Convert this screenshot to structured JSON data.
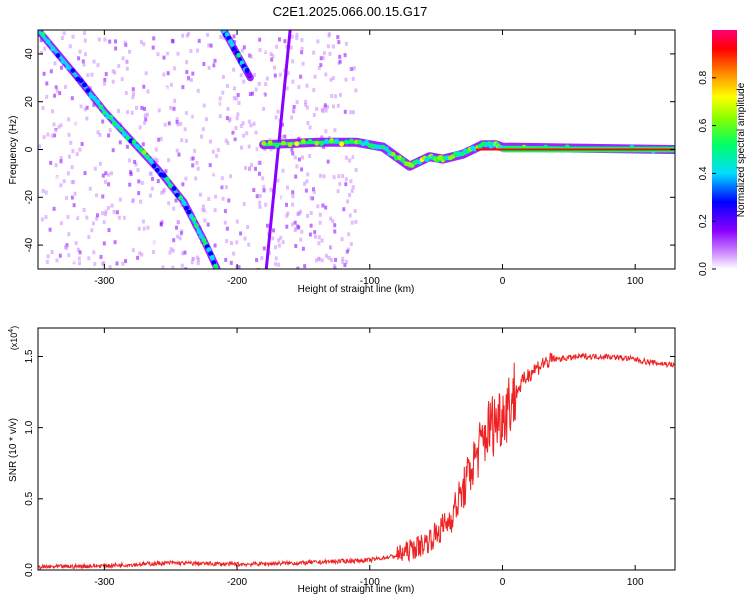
{
  "title": "C2E1.2025.066.00.15.G17",
  "colors": {
    "snr_line": "#ee2222",
    "colorscale": [
      "#ffffff",
      "#cc88ff",
      "#8a00ff",
      "#0000ff",
      "#00ddff",
      "#00ff66",
      "#88ff00",
      "#ffff00",
      "#ff8800",
      "#ff0000",
      "#ff0077"
    ]
  },
  "chart_data": [
    {
      "type": "heatmap",
      "xlabel": "Height of straight line (km)",
      "ylabel": "Frequency (Hz)",
      "xlim": [
        -350,
        130
      ],
      "ylim": [
        -50,
        50
      ],
      "xticks": [
        -300,
        -200,
        -100,
        0,
        100
      ],
      "yticks": [
        -40,
        -20,
        0,
        20,
        40
      ],
      "colorbar": {
        "label": "Normalized spectral amplitude",
        "range": [
          0,
          1
        ],
        "ticks": [
          "0.0",
          "0.2",
          "0.4",
          "0.6",
          "0.8"
        ]
      },
      "features": [
        {
          "kind": "scatter-band",
          "x": [
            -350,
            -110
          ],
          "y": [
            -50,
            50
          ],
          "value": 0.1
        },
        {
          "kind": "track",
          "x": [
            -350,
            -320,
            -300,
            -280,
            -260,
            -240,
            -225,
            -215
          ],
          "y": [
            50,
            30,
            16,
            4,
            -8,
            -22,
            -38,
            -50
          ],
          "value": 0.35
        },
        {
          "kind": "track",
          "x": [
            -210,
            -200,
            -190
          ],
          "y": [
            50,
            40,
            30
          ],
          "value": 0.3
        },
        {
          "kind": "line",
          "x": [
            -178,
            -160
          ],
          "y": [
            -50,
            50
          ],
          "value": 0.2
        },
        {
          "kind": "carrier",
          "x": [
            -180,
            -140,
            -110,
            -90,
            -70,
            -55,
            -45,
            -30,
            -15,
            -5,
            0,
            130
          ],
          "y": [
            2,
            3,
            3,
            1,
            -7,
            -3,
            -4,
            -2,
            2,
            2,
            1,
            0
          ],
          "value": 0.45
        }
      ]
    },
    {
      "type": "line",
      "xlabel": "Height of straight line (km)",
      "ylabel": "SNR (10 * v/v)",
      "yscale_label": "(x10",
      "yscale_exp": "4",
      "xlim": [
        -350,
        130
      ],
      "ylim": [
        0,
        1.7
      ],
      "xticks": [
        -300,
        -200,
        -100,
        0,
        100
      ],
      "yticks": [
        "0.0",
        "0.5",
        "1.0",
        "1.5"
      ],
      "series": [
        {
          "x": [
            -350,
            -300,
            -250,
            -200,
            -150,
            -100,
            -80,
            -60,
            -50,
            -40,
            -30,
            -20,
            -10,
            0,
            10,
            20,
            30,
            40,
            60,
            80,
            100,
            110,
            130
          ],
          "y": [
            0.02,
            0.03,
            0.05,
            0.04,
            0.05,
            0.07,
            0.1,
            0.18,
            0.25,
            0.35,
            0.55,
            0.8,
            1.0,
            1.1,
            1.25,
            1.38,
            1.45,
            1.48,
            1.5,
            1.5,
            1.48,
            1.46,
            1.44
          ]
        }
      ]
    }
  ]
}
